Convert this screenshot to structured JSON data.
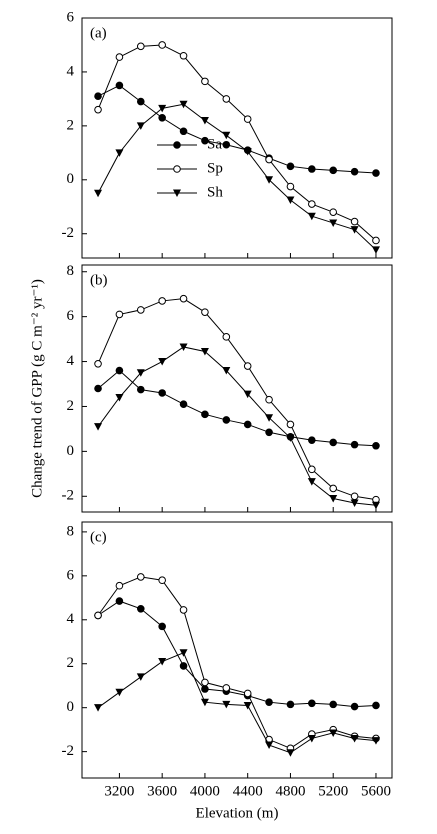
{
  "chart_data": [
    {
      "type": "line",
      "panel_label": "(a)",
      "xlim": [
        2850,
        5750
      ],
      "xticks": [
        3200,
        3600,
        4000,
        4400,
        4800,
        5200,
        5600
      ],
      "ylim": [
        -2.9,
        6
      ],
      "yticks": [
        -2,
        0,
        2,
        4,
        6
      ],
      "legend": "center-left",
      "x": [
        3000,
        3200,
        3400,
        3600,
        3800,
        4000,
        4200,
        4400,
        4600,
        4800,
        5000,
        5200,
        5400,
        5600
      ],
      "series": [
        {
          "name": "Sa",
          "color": "#000000",
          "marker": "filled-circle",
          "values": [
            3.1,
            3.5,
            2.9,
            2.3,
            1.8,
            1.45,
            1.3,
            1.1,
            0.8,
            0.5,
            0.4,
            0.35,
            0.3,
            0.25
          ]
        },
        {
          "name": "Sp",
          "color": "#000000",
          "marker": "open-circle",
          "values": [
            2.6,
            4.55,
            4.95,
            5.0,
            4.6,
            3.65,
            3.0,
            2.25,
            0.75,
            -0.25,
            -0.9,
            -1.2,
            -1.55,
            -2.25
          ]
        },
        {
          "name": "Sh",
          "color": "#000000",
          "marker": "triangle-down",
          "values": [
            -0.5,
            1.0,
            2.0,
            2.65,
            2.8,
            2.2,
            1.65,
            1.05,
            0.0,
            -0.75,
            -1.35,
            -1.6,
            -1.85,
            -2.6
          ]
        }
      ]
    },
    {
      "type": "line",
      "panel_label": "(b)",
      "ylabel": "Change trend of GPP (g C m⁻² yr⁻¹)",
      "xlim": [
        2850,
        5750
      ],
      "xticks": [
        3200,
        3600,
        4000,
        4400,
        4800,
        5200,
        5600
      ],
      "ylim": [
        -2.7,
        8.3
      ],
      "yticks": [
        -2,
        0,
        2,
        4,
        6,
        8
      ],
      "x": [
        3000,
        3200,
        3400,
        3600,
        3800,
        4000,
        4200,
        4400,
        4600,
        4800,
        5000,
        5200,
        5400,
        5600
      ],
      "series": [
        {
          "color": "#000000",
          "marker": "filled-circle",
          "values": [
            2.8,
            3.6,
            2.75,
            2.6,
            2.1,
            1.65,
            1.4,
            1.2,
            0.85,
            0.65,
            0.5,
            0.4,
            0.3,
            0.25
          ]
        },
        {
          "color": "#000000",
          "marker": "open-circle",
          "values": [
            3.9,
            6.1,
            6.3,
            6.7,
            6.8,
            6.2,
            5.1,
            3.8,
            2.3,
            1.2,
            -0.8,
            -1.65,
            -2.0,
            -2.15
          ]
        },
        {
          "color": "#000000",
          "marker": "triangle-down",
          "values": [
            1.1,
            2.4,
            3.5,
            4.0,
            4.65,
            4.45,
            3.6,
            2.55,
            1.5,
            0.6,
            -1.35,
            -2.1,
            -2.3,
            -2.4
          ]
        }
      ]
    },
    {
      "type": "line",
      "panel_label": "(c)",
      "xlabel": "Elevation (m)",
      "xlim": [
        2850,
        5750
      ],
      "xticks": [
        3200,
        3600,
        4000,
        4400,
        4800,
        5200,
        5600
      ],
      "ylim": [
        -3.2,
        8.45
      ],
      "yticks": [
        -2,
        0,
        2,
        4,
        6,
        8
      ],
      "x": [
        3000,
        3200,
        3400,
        3600,
        3800,
        4000,
        4200,
        4400,
        4600,
        4800,
        5000,
        5200,
        5400,
        5600
      ],
      "series": [
        {
          "color": "#000000",
          "marker": "filled-circle",
          "values": [
            4.2,
            4.85,
            4.5,
            3.7,
            1.9,
            0.85,
            0.75,
            0.55,
            0.25,
            0.15,
            0.2,
            0.15,
            0.05,
            0.1
          ]
        },
        {
          "color": "#000000",
          "marker": "open-circle",
          "values": [
            4.2,
            5.55,
            5.95,
            5.8,
            4.45,
            1.15,
            0.9,
            0.65,
            -1.45,
            -1.85,
            -1.2,
            -1.0,
            -1.3,
            -1.4
          ]
        },
        {
          "color": "#000000",
          "marker": "triangle-down",
          "values": [
            0.0,
            0.7,
            1.4,
            2.1,
            2.5,
            0.25,
            0.15,
            0.1,
            -1.7,
            -2.05,
            -1.4,
            -1.15,
            -1.4,
            -1.5
          ]
        }
      ]
    }
  ]
}
